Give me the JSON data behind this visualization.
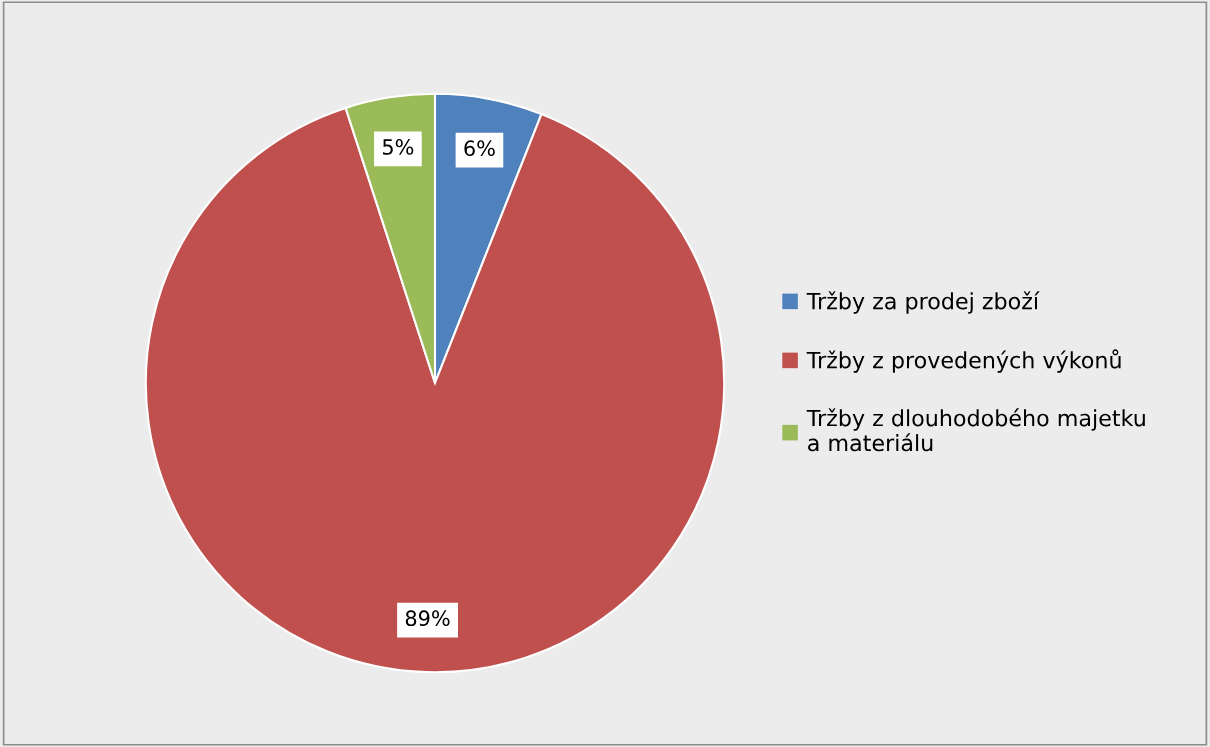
{
  "chart_data": {
    "type": "pie",
    "categories": [
      "Tržby za prodej zboží",
      "Tržby z provedených výkonů",
      "Tržby z dlouhodobého majetku\na materiálu"
    ],
    "values": [
      6,
      89,
      5
    ],
    "colors": [
      "#4f81bd",
      "#c0504d",
      "#9bbb59"
    ],
    "value_labels": [
      "6%",
      "89%",
      "5%"
    ],
    "legend": "right"
  }
}
